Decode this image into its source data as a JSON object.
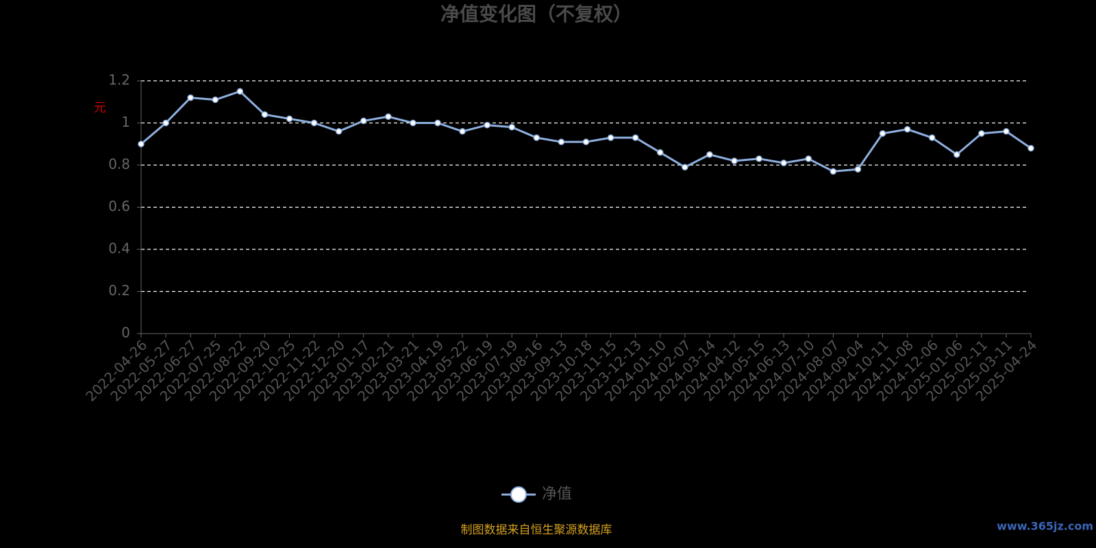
{
  "chart_data": {
    "type": "line",
    "title": "净值变化图（不复权）",
    "y_label": "元",
    "categories": [
      "2022-04-26",
      "2022-05-27",
      "2022-06-27",
      "2022-07-25",
      "2022-08-22",
      "2022-09-20",
      "2022-10-25",
      "2022-11-22",
      "2022-12-20",
      "2023-01-17",
      "2023-02-21",
      "2023-03-21",
      "2023-04-19",
      "2023-05-22",
      "2023-06-19",
      "2023-07-19",
      "2023-08-16",
      "2023-09-13",
      "2023-10-18",
      "2023-11-15",
      "2023-12-13",
      "2024-01-10",
      "2024-02-07",
      "2024-03-14",
      "2024-04-12",
      "2024-05-15",
      "2024-06-13",
      "2024-07-10",
      "2024-08-07",
      "2024-09-04",
      "2024-10-11",
      "2024-11-08",
      "2024-12-06",
      "2025-01-06",
      "2025-02-11",
      "2025-03-11",
      "2025-04-24"
    ],
    "series": [
      {
        "name": "净值",
        "color": "#8fb0e0",
        "values": [
          0.9,
          1.0,
          1.12,
          1.11,
          1.15,
          1.04,
          1.02,
          1.0,
          0.96,
          1.01,
          1.03,
          1.0,
          1.0,
          0.96,
          0.99,
          0.98,
          0.93,
          0.91,
          0.91,
          0.93,
          0.93,
          0.86,
          0.79,
          0.85,
          0.82,
          0.83,
          0.81,
          0.83,
          0.77,
          0.78,
          0.95,
          0.97,
          0.93,
          0.85,
          0.95,
          0.96,
          0.88
        ]
      }
    ],
    "ylim": [
      0,
      1.2
    ],
    "yticks": [
      0,
      0.2,
      0.4,
      0.6,
      0.8,
      1,
      1.2
    ],
    "grid": true,
    "legend": "bottom"
  },
  "footer": "制图数据来自恒生聚源数据库",
  "watermark": "www.365jz.com"
}
